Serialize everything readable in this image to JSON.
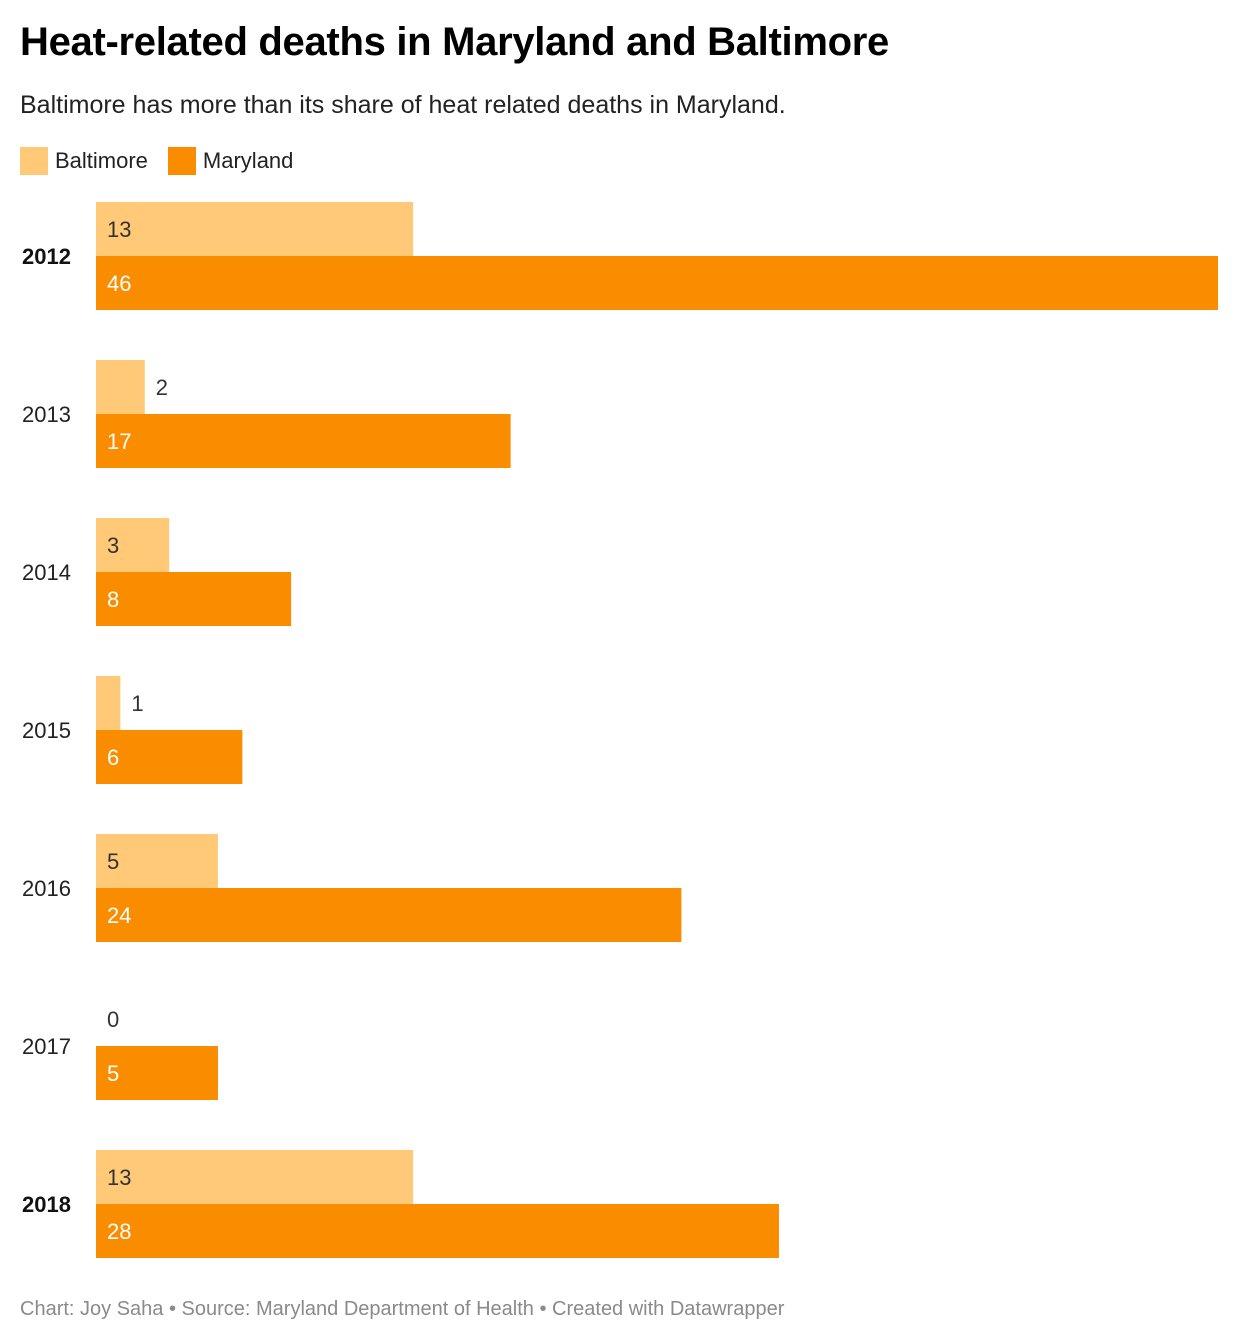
{
  "title": "Heat-related deaths in Maryland and Baltimore",
  "subtitle": "Baltimore has more than its share of heat related deaths in Maryland.",
  "footer": "Chart: Joy Saha • Source: Maryland Department of Health • Created with Datawrapper",
  "legend": [
    {
      "label": "Baltimore",
      "color": "#ffc977"
    },
    {
      "label": "Maryland",
      "color": "#fa8c00"
    }
  ],
  "chart_data": {
    "type": "bar",
    "orientation": "horizontal",
    "grouped": true,
    "categories": [
      "2012",
      "2013",
      "2014",
      "2015",
      "2016",
      "2017",
      "2018"
    ],
    "highlighted_categories": [
      "2012",
      "2018"
    ],
    "series": [
      {
        "name": "Baltimore",
        "color": "#ffc977",
        "values": [
          13,
          2,
          3,
          1,
          5,
          0,
          13
        ]
      },
      {
        "name": "Maryland",
        "color": "#fa8c00",
        "values": [
          46,
          17,
          8,
          6,
          24,
          5,
          28
        ]
      }
    ],
    "xlim": [
      0,
      46
    ],
    "title": "Heat-related deaths in Maryland and Baltimore",
    "xlabel": "",
    "ylabel": "",
    "grid": false,
    "legend_position": "top-left"
  }
}
